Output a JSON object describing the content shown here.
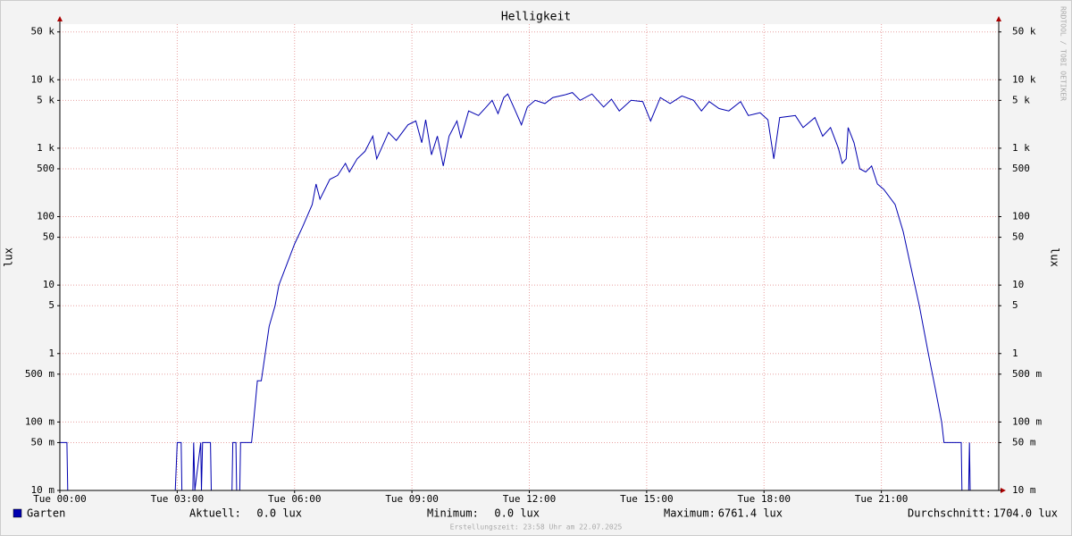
{
  "chart_data": {
    "type": "line",
    "title": "Helligkeit",
    "y_label": "lux",
    "yscale": "log",
    "grid": true,
    "side_label": "RRDTOOL / TOBI OETIKER",
    "footer": "Erstellungszeit: 23:58 Uhr am 22.07.2025",
    "xlim": [
      0,
      24
    ],
    "ylim": [
      0.01,
      65000
    ],
    "xticks": [
      {
        "value": 0,
        "label": "Tue 00:00"
      },
      {
        "value": 3,
        "label": "Tue 03:00"
      },
      {
        "value": 6,
        "label": "Tue 06:00"
      },
      {
        "value": 9,
        "label": "Tue 09:00"
      },
      {
        "value": 12,
        "label": "Tue 12:00"
      },
      {
        "value": 15,
        "label": "Tue 15:00"
      },
      {
        "value": 18,
        "label": "Tue 18:00"
      },
      {
        "value": 21,
        "label": "Tue 21:00"
      }
    ],
    "yticks": [
      {
        "value": 0.01,
        "label": "10 m"
      },
      {
        "value": 0.05,
        "label": "50 m"
      },
      {
        "value": 0.1,
        "label": "100 m"
      },
      {
        "value": 0.5,
        "label": "500 m"
      },
      1,
      5,
      10,
      50,
      100,
      500,
      {
        "value": 1000,
        "label": "1 k"
      },
      {
        "value": 5000,
        "label": "5 k"
      },
      {
        "value": 10000,
        "label": "10 k"
      },
      {
        "value": 50000,
        "label": "50 k"
      }
    ],
    "x": [
      0,
      0.18,
      0.2,
      2.95,
      3.0,
      3.1,
      3.12,
      3.4,
      3.42,
      3.45,
      3.6,
      3.62,
      3.65,
      3.7,
      3.85,
      3.87,
      4.4,
      4.42,
      4.5,
      4.52,
      4.6,
      4.62,
      4.9,
      4.95,
      5.0,
      5.05,
      5.15,
      5.25,
      5.35,
      5.5,
      5.6,
      5.8,
      6.0,
      6.2,
      6.45,
      6.55,
      6.65,
      6.9,
      7.1,
      7.3,
      7.4,
      7.6,
      7.8,
      8.0,
      8.1,
      8.4,
      8.6,
      8.9,
      9.1,
      9.25,
      9.35,
      9.5,
      9.65,
      9.8,
      9.95,
      10.15,
      10.25,
      10.45,
      10.7,
      10.9,
      11.05,
      11.2,
      11.35,
      11.45,
      11.6,
      11.8,
      11.95,
      12.15,
      12.4,
      12.6,
      12.9,
      13.1,
      13.3,
      13.6,
      13.9,
      14.1,
      14.3,
      14.6,
      14.9,
      15.1,
      15.35,
      15.6,
      15.9,
      16.2,
      16.4,
      16.6,
      16.85,
      17.1,
      17.4,
      17.6,
      17.9,
      18.1,
      18.25,
      18.4,
      18.8,
      19.0,
      19.3,
      19.5,
      19.7,
      19.9,
      20.0,
      20.1,
      20.15,
      20.3,
      20.45,
      20.6,
      20.75,
      20.9,
      21.06,
      21.35,
      21.56,
      21.74,
      21.97,
      22.2,
      22.38,
      22.54,
      22.6,
      23.04,
      23.06,
      23.23,
      23.25,
      23.27,
      24
    ],
    "series": [
      {
        "name": "Garten",
        "color": "#0000b0",
        "values": [
          0.05,
          0.05,
          0,
          0,
          0.05,
          0.05,
          0,
          0,
          0.05,
          0,
          0.05,
          0,
          0.05,
          0.05,
          0.05,
          0,
          0,
          0.05,
          0.05,
          0,
          0,
          0.05,
          0.05,
          0.1,
          0.2,
          0.4,
          0.4,
          1,
          2.5,
          5,
          10,
          20,
          40,
          70,
          150,
          300,
          180,
          350,
          400,
          600,
          450,
          700,
          900,
          1500,
          700,
          1700,
          1300,
          2200,
          2500,
          1200,
          2600,
          800,
          1500,
          550,
          1500,
          2500,
          1400,
          3500,
          3000,
          4000,
          5000,
          3200,
          5500,
          6200,
          4000,
          2200,
          4000,
          5000,
          4500,
          5500,
          6000,
          6500,
          5000,
          6200,
          4000,
          5200,
          3500,
          5000,
          4800,
          2500,
          5500,
          4500,
          5800,
          5000,
          3500,
          4800,
          3800,
          3500,
          4800,
          3000,
          3300,
          2600,
          700,
          2800,
          3000,
          2000,
          2800,
          1500,
          2000,
          1000,
          600,
          700,
          2000,
          1200,
          500,
          450,
          550,
          300,
          250,
          150,
          60,
          20,
          5,
          1,
          0.3,
          0.1,
          0.05,
          0.05,
          0,
          0,
          0.05,
          0,
          0
        ]
      }
    ],
    "legend_stats": [
      {
        "label": "Aktuell:",
        "value": "0.0 lux"
      },
      {
        "label": "Minimum:",
        "value": "0.0 lux"
      },
      {
        "label": "Maximum:",
        "value": "6761.4 lux"
      },
      {
        "label": "Durchschnitt:",
        "value": "1704.0 lux"
      }
    ]
  }
}
